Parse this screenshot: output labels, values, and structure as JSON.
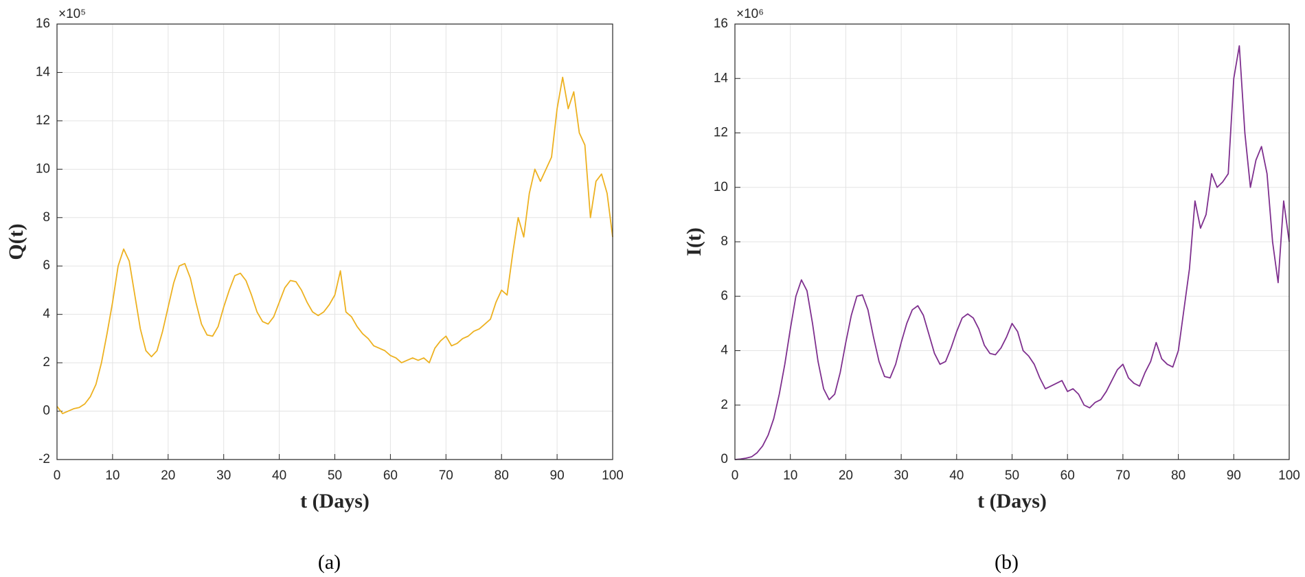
{
  "chart_data": [
    {
      "type": "line",
      "ylabel": "Q(t)",
      "xlabel": "t (Days)",
      "caption": "(a)",
      "y_multiplier": "×10⁵",
      "color": "#EDB120",
      "grid": true,
      "xlim": [
        0,
        100
      ],
      "xticks": [
        0,
        10,
        20,
        30,
        40,
        50,
        60,
        70,
        80,
        90,
        100
      ],
      "ylim": [
        -2,
        16
      ],
      "yticks": [
        -2,
        0,
        2,
        4,
        6,
        8,
        10,
        12,
        14,
        16
      ],
      "x": [
        0,
        1,
        2,
        3,
        4,
        5,
        6,
        7,
        8,
        9,
        10,
        11,
        12,
        13,
        14,
        15,
        16,
        17,
        18,
        19,
        20,
        21,
        22,
        23,
        24,
        25,
        26,
        27,
        28,
        29,
        30,
        31,
        32,
        33,
        34,
        35,
        36,
        37,
        38,
        39,
        40,
        41,
        42,
        43,
        44,
        45,
        46,
        47,
        48,
        49,
        50,
        51,
        52,
        53,
        54,
        55,
        56,
        57,
        58,
        59,
        60,
        61,
        62,
        63,
        64,
        65,
        66,
        67,
        68,
        69,
        70,
        71,
        72,
        73,
        74,
        75,
        76,
        77,
        78,
        79,
        80,
        81,
        82,
        83,
        84,
        85,
        86,
        87,
        88,
        89,
        90,
        91,
        92,
        93,
        94,
        95,
        96,
        97,
        98,
        99,
        100
      ],
      "values": [
        0.2,
        -0.1,
        0,
        0.1,
        0.15,
        0.3,
        0.6,
        1.1,
        2.0,
        3.2,
        4.5,
        6.0,
        6.7,
        6.2,
        4.8,
        3.4,
        2.5,
        2.25,
        2.5,
        3.3,
        4.3,
        5.3,
        6.0,
        6.1,
        5.5,
        4.5,
        3.6,
        3.15,
        3.1,
        3.5,
        4.3,
        5.0,
        5.6,
        5.7,
        5.4,
        4.8,
        4.1,
        3.7,
        3.6,
        3.9,
        4.5,
        5.1,
        5.4,
        5.35,
        5.0,
        4.5,
        4.1,
        3.95,
        4.1,
        4.4,
        4.8,
        5.8,
        4.1,
        3.9,
        3.5,
        3.2,
        3.0,
        2.7,
        2.6,
        2.5,
        2.3,
        2.2,
        2.0,
        2.1,
        2.2,
        2.1,
        2.2,
        2.0,
        2.6,
        2.9,
        3.1,
        2.7,
        2.8,
        3.0,
        3.1,
        3.3,
        3.4,
        3.6,
        3.8,
        4.5,
        5.0,
        4.8,
        6.5,
        8.0,
        7.2,
        9.0,
        10.0,
        9.5,
        10.0,
        10.5,
        12.5,
        13.8,
        12.5,
        13.2,
        11.5,
        11.0,
        8.0,
        9.5,
        9.8,
        9.0,
        7.2
      ]
    },
    {
      "type": "line",
      "ylabel": "I(t)",
      "xlabel": "t (Days)",
      "caption": "(b)",
      "y_multiplier": "×10⁶",
      "color": "#7E2F8E",
      "grid": true,
      "xlim": [
        0,
        100
      ],
      "xticks": [
        0,
        10,
        20,
        30,
        40,
        50,
        60,
        70,
        80,
        90,
        100
      ],
      "ylim": [
        0,
        16
      ],
      "yticks": [
        0,
        2,
        4,
        6,
        8,
        10,
        12,
        14,
        16
      ],
      "x": [
        0,
        1,
        2,
        3,
        4,
        5,
        6,
        7,
        8,
        9,
        10,
        11,
        12,
        13,
        14,
        15,
        16,
        17,
        18,
        19,
        20,
        21,
        22,
        23,
        24,
        25,
        26,
        27,
        28,
        29,
        30,
        31,
        32,
        33,
        34,
        35,
        36,
        37,
        38,
        39,
        40,
        41,
        42,
        43,
        44,
        45,
        46,
        47,
        48,
        49,
        50,
        51,
        52,
        53,
        54,
        55,
        56,
        57,
        58,
        59,
        60,
        61,
        62,
        63,
        64,
        65,
        66,
        67,
        68,
        69,
        70,
        71,
        72,
        73,
        74,
        75,
        76,
        77,
        78,
        79,
        80,
        81,
        82,
        83,
        84,
        85,
        86,
        87,
        88,
        89,
        90,
        91,
        92,
        93,
        94,
        95,
        96,
        97,
        98,
        99,
        100
      ],
      "values": [
        0,
        0.02,
        0.05,
        0.1,
        0.25,
        0.5,
        0.9,
        1.5,
        2.4,
        3.5,
        4.8,
        6.0,
        6.6,
        6.2,
        5.0,
        3.6,
        2.6,
        2.2,
        2.4,
        3.2,
        4.3,
        5.3,
        6.0,
        6.05,
        5.5,
        4.5,
        3.6,
        3.05,
        3.0,
        3.5,
        4.3,
        5.0,
        5.5,
        5.65,
        5.3,
        4.6,
        3.9,
        3.5,
        3.6,
        4.1,
        4.7,
        5.2,
        5.35,
        5.2,
        4.8,
        4.2,
        3.9,
        3.85,
        4.1,
        4.5,
        5.0,
        4.7,
        4.0,
        3.8,
        3.5,
        3.0,
        2.6,
        2.7,
        2.8,
        2.9,
        2.5,
        2.6,
        2.4,
        2.0,
        1.9,
        2.1,
        2.2,
        2.5,
        2.9,
        3.3,
        3.5,
        3.0,
        2.8,
        2.7,
        3.2,
        3.6,
        4.3,
        3.7,
        3.5,
        3.4,
        4.0,
        5.5,
        7.0,
        9.5,
        8.5,
        9.0,
        10.5,
        10.0,
        10.2,
        10.5,
        14.0,
        15.2,
        12.0,
        10.0,
        11.0,
        11.5,
        10.5,
        8.0,
        6.5,
        9.5,
        8.0
      ]
    }
  ]
}
